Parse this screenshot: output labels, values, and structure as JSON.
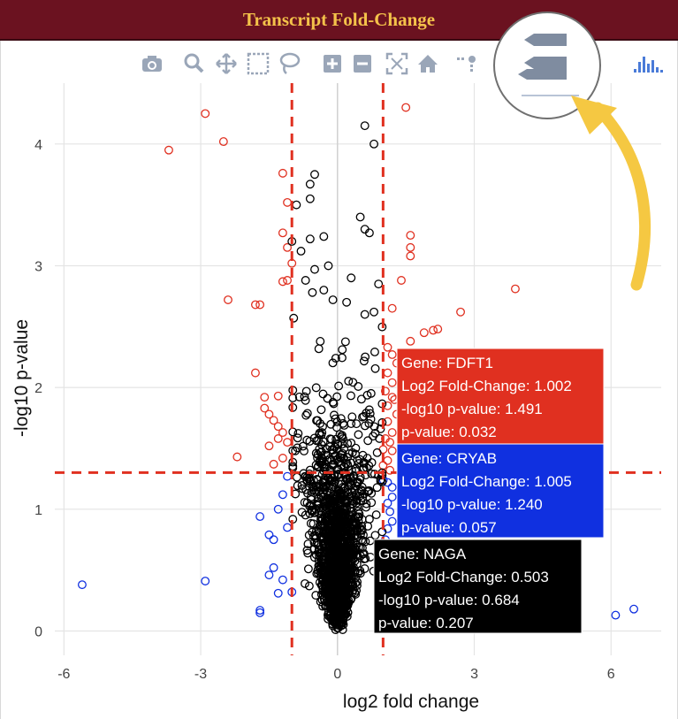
{
  "header": {
    "title": "Transcript Fold-Change"
  },
  "toolbar": {
    "icons": [
      "camera-icon",
      "zoom-icon",
      "pan-icon",
      "box-select-icon",
      "lasso-icon",
      "zoom-in-icon",
      "zoom-out-icon",
      "autoscale-icon",
      "home-icon",
      "spike-lines-icon",
      "hover-closest-icon",
      "hover-compare-icon",
      "plotly-logo-icon"
    ]
  },
  "colors": {
    "header_bg": "#6b1220",
    "header_text": "#f4c24a",
    "up_down_significant": "#e03020",
    "low_pvalue_only": "#1030e0",
    "not_significant": "#000000",
    "threshold_line": "#e03020",
    "annotation_arrow": "#f5c842"
  },
  "chart_data": {
    "type": "scatter",
    "title": "",
    "xlabel": "log2 fold change",
    "ylabel": "-log10 p-value",
    "xlim": [
      -6.2,
      7.1
    ],
    "ylim": [
      -0.2,
      4.5
    ],
    "xticks": [
      -6,
      -3,
      0,
      3,
      6
    ],
    "yticks": [
      0,
      1,
      2,
      3,
      4
    ],
    "grid": true,
    "thresholds": {
      "x": [
        -1,
        1
      ],
      "y": 1.301
    },
    "series": [
      {
        "color": "#e03020",
        "points": [
          [
            -2.9,
            4.25
          ],
          [
            -3.7,
            3.95
          ],
          [
            -2.5,
            4.02
          ],
          [
            -2.4,
            2.72
          ],
          [
            -1.8,
            2.68
          ],
          [
            -1.7,
            2.68
          ],
          [
            -1.8,
            2.12
          ],
          [
            -1.2,
            3.76
          ],
          [
            -1.1,
            3.52
          ],
          [
            -1.2,
            3.27
          ],
          [
            -1.1,
            3.15
          ],
          [
            -1.0,
            3.02
          ],
          [
            -1.2,
            2.87
          ],
          [
            -1.1,
            2.88
          ],
          [
            -1.6,
            1.83
          ],
          [
            -1.4,
            1.73
          ],
          [
            -1.2,
            1.63
          ],
          [
            -1.5,
            1.52
          ],
          [
            -1.3,
            1.58
          ],
          [
            -1.2,
            1.42
          ],
          [
            -1.4,
            1.37
          ],
          [
            -2.2,
            1.43
          ],
          [
            -1.5,
            1.78
          ],
          [
            -1.3,
            1.68
          ],
          [
            -1.1,
            1.55
          ],
          [
            -1.6,
            1.92
          ],
          [
            -1.3,
            1.93
          ],
          [
            1.5,
            4.3
          ],
          [
            1.6,
            3.25
          ],
          [
            1.6,
            3.15
          ],
          [
            1.6,
            3.08
          ],
          [
            1.4,
            2.88
          ],
          [
            1.2,
            2.65
          ],
          [
            2.2,
            2.48
          ],
          [
            2.1,
            2.47
          ],
          [
            2.7,
            2.62
          ],
          [
            3.9,
            2.81
          ],
          [
            1.6,
            2.38
          ],
          [
            1.9,
            2.45
          ],
          [
            1.1,
            2.33
          ],
          [
            1.2,
            2.27
          ],
          [
            1.3,
            2.2
          ],
          [
            1.1,
            2.12
          ],
          [
            1.2,
            2.04
          ],
          [
            1.05,
            1.97
          ],
          [
            1.2,
            1.92
          ],
          [
            1.1,
            1.85
          ],
          [
            1.3,
            1.78
          ],
          [
            1.1,
            1.72
          ],
          [
            1.2,
            1.63
          ],
          [
            1.05,
            1.58
          ],
          [
            1.15,
            1.55
          ],
          [
            1.2,
            1.48
          ],
          [
            1.1,
            1.4
          ],
          [
            1.0,
            1.36
          ],
          [
            1.15,
            1.32
          ],
          [
            1.25,
            1.9
          ],
          [
            1.002,
            1.491
          ]
        ]
      },
      {
        "color": "#1030e0",
        "points": [
          [
            -5.6,
            0.38
          ],
          [
            -2.9,
            0.41
          ],
          [
            -1.7,
            0.17
          ],
          [
            -1.7,
            0.15
          ],
          [
            -1.5,
            0.46
          ],
          [
            -1.4,
            0.52
          ],
          [
            -1.3,
            0.31
          ],
          [
            -1.7,
            0.94
          ],
          [
            -1.3,
            1.0
          ],
          [
            -1.5,
            0.79
          ],
          [
            -1.4,
            0.75
          ],
          [
            -1.2,
            1.12
          ],
          [
            -1.1,
            1.27
          ],
          [
            -1.1,
            0.85
          ],
          [
            -1.0,
            0.32
          ],
          [
            -1.2,
            0.42
          ],
          [
            6.1,
            0.13
          ],
          [
            6.5,
            0.18
          ],
          [
            1.1,
            1.22
          ],
          [
            1.2,
            1.1
          ],
          [
            1.15,
            0.98
          ],
          [
            1.2,
            0.9
          ],
          [
            1.1,
            0.84
          ],
          [
            1.05,
            0.75
          ],
          [
            1.1,
            1.05
          ],
          [
            1.2,
            1.18
          ],
          [
            1.005,
            1.24
          ]
        ]
      },
      {
        "color": "#000000",
        "points": [
          [
            0.6,
            4.15
          ],
          [
            0.8,
            4.0
          ],
          [
            -0.5,
            3.75
          ],
          [
            -0.6,
            3.67
          ],
          [
            -0.9,
            3.5
          ],
          [
            -0.6,
            3.55
          ],
          [
            -0.6,
            3.22
          ],
          [
            -0.3,
            3.24
          ],
          [
            0.5,
            3.4
          ],
          [
            0.6,
            3.3
          ],
          [
            0.7,
            3.27
          ],
          [
            -1.0,
            3.2
          ],
          [
            -0.8,
            3.12
          ],
          [
            -0.2,
            3.0
          ],
          [
            -0.5,
            2.97
          ],
          [
            -0.7,
            2.88
          ],
          [
            0.3,
            2.9
          ],
          [
            0.9,
            2.85
          ],
          [
            -0.55,
            2.78
          ],
          [
            -0.3,
            2.8
          ],
          [
            -0.1,
            2.72
          ],
          [
            0.2,
            2.7
          ],
          [
            0.6,
            2.6
          ],
          [
            0.8,
            2.62
          ],
          [
            0.503,
            0.684
          ]
        ],
        "cloud_count": 1600
      }
    ],
    "tooltips": [
      {
        "color": "#e03020",
        "lines": [
          "Gene: FDFT1",
          "Log2 Fold-Change: 1.002",
          "-log10 p-value: 1.491",
          "p-value: 0.032"
        ]
      },
      {
        "color": "#1030e0",
        "lines": [
          "Gene: CRYAB",
          "Log2 Fold-Change: 1.005",
          "-log10 p-value: 1.240",
          "p-value: 0.057"
        ]
      },
      {
        "color": "#000000",
        "lines": [
          "Gene: NAGA",
          "Log2 Fold-Change: 0.503",
          "-log10 p-value: 0.684",
          "p-value: 0.207"
        ]
      }
    ]
  }
}
